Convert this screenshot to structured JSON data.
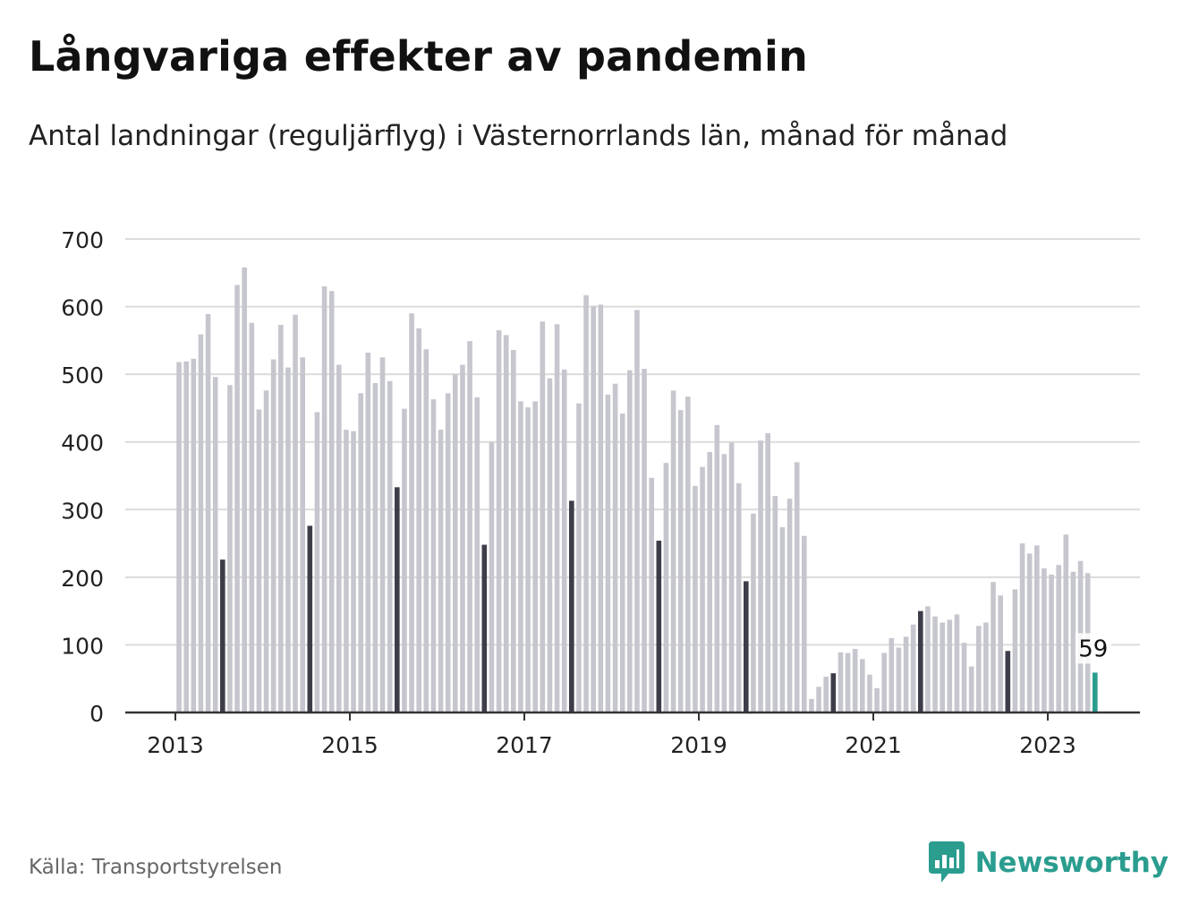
{
  "header": {
    "title": "Långvariga effekter av pandemin",
    "subtitle": "Antal landningar (reguljärflyg) i Västernorrlands län, månad för månad"
  },
  "footer": {
    "source": "Källa: Transportstyrelsen",
    "brand": "Newsworthy",
    "brand_icon": "newsworthy-logo-icon"
  },
  "colors": {
    "bar_default": "#c6c6ce",
    "bar_highlight": "#3d3d4a",
    "bar_latest": "#2a9d8f",
    "grid": "#dcdcdc",
    "axis": "#333333",
    "brand": "#2a9d8f"
  },
  "chart_data": {
    "type": "bar",
    "title": "Långvariga effekter av pandemin",
    "subtitle": "Antal landningar (reguljärflyg) i Västernorrlands län, månad för månad",
    "xlabel": "",
    "ylabel": "",
    "ylim": [
      0,
      700
    ],
    "yticks": [
      0,
      100,
      200,
      300,
      400,
      500,
      600,
      700
    ],
    "xticks": [
      "2013",
      "2015",
      "2017",
      "2019",
      "2021",
      "2023"
    ],
    "grid": true,
    "start": "2013-01",
    "months": [
      "2013-01",
      "2013-02",
      "2013-03",
      "2013-04",
      "2013-05",
      "2013-06",
      "2013-07",
      "2013-08",
      "2013-09",
      "2013-10",
      "2013-11",
      "2013-12",
      "2014-01",
      "2014-02",
      "2014-03",
      "2014-04",
      "2014-05",
      "2014-06",
      "2014-07",
      "2014-08",
      "2014-09",
      "2014-10",
      "2014-11",
      "2014-12",
      "2015-01",
      "2015-02",
      "2015-03",
      "2015-04",
      "2015-05",
      "2015-06",
      "2015-07",
      "2015-08",
      "2015-09",
      "2015-10",
      "2015-11",
      "2015-12",
      "2016-01",
      "2016-02",
      "2016-03",
      "2016-04",
      "2016-05",
      "2016-06",
      "2016-07",
      "2016-08",
      "2016-09",
      "2016-10",
      "2016-11",
      "2016-12",
      "2017-01",
      "2017-02",
      "2017-03",
      "2017-04",
      "2017-05",
      "2017-06",
      "2017-07",
      "2017-08",
      "2017-09",
      "2017-10",
      "2017-11",
      "2017-12",
      "2018-01",
      "2018-02",
      "2018-03",
      "2018-04",
      "2018-05",
      "2018-06",
      "2018-07",
      "2018-08",
      "2018-09",
      "2018-10",
      "2018-11",
      "2018-12",
      "2019-01",
      "2019-02",
      "2019-03",
      "2019-04",
      "2019-05",
      "2019-06",
      "2019-07",
      "2019-08",
      "2019-09",
      "2019-10",
      "2019-11",
      "2019-12",
      "2020-01",
      "2020-02",
      "2020-03",
      "2020-04",
      "2020-05",
      "2020-06",
      "2020-07",
      "2020-08",
      "2020-09",
      "2020-10",
      "2020-11",
      "2020-12",
      "2021-01",
      "2021-02",
      "2021-03",
      "2021-04",
      "2021-05",
      "2021-06",
      "2021-07",
      "2021-08",
      "2021-09",
      "2021-10",
      "2021-11",
      "2021-12",
      "2022-01",
      "2022-02",
      "2022-03",
      "2022-04",
      "2022-05",
      "2022-06",
      "2022-07",
      "2022-08",
      "2022-09",
      "2022-10",
      "2022-11",
      "2022-12",
      "2023-01",
      "2023-02",
      "2023-03",
      "2023-04",
      "2023-05",
      "2023-06",
      "2023-07"
    ],
    "values": [
      518,
      519,
      523,
      559,
      589,
      496,
      226,
      484,
      632,
      658,
      576,
      448,
      476,
      522,
      573,
      510,
      588,
      525,
      276,
      444,
      630,
      623,
      514,
      418,
      416,
      472,
      532,
      487,
      525,
      490,
      333,
      449,
      590,
      568,
      537,
      463,
      418,
      472,
      500,
      514,
      549,
      466,
      248,
      400,
      565,
      558,
      536,
      460,
      451,
      460,
      578,
      494,
      574,
      507,
      313,
      457,
      617,
      601,
      603,
      470,
      486,
      442,
      506,
      595,
      508,
      347,
      254,
      369,
      476,
      447,
      467,
      335,
      363,
      385,
      425,
      382,
      399,
      339,
      194,
      294,
      402,
      413,
      320,
      274,
      316,
      370,
      261,
      20,
      38,
      53,
      58,
      89,
      88,
      94,
      79,
      56,
      36,
      88,
      110,
      96,
      112,
      130,
      150,
      157,
      142,
      133,
      137,
      145,
      103,
      68,
      128,
      133,
      193,
      173,
      91,
      182,
      250,
      235,
      247,
      213,
      204,
      218,
      263,
      208,
      224,
      206,
      59
    ],
    "highlighted_months": [
      "2013-07",
      "2014-07",
      "2015-07",
      "2016-07",
      "2017-07",
      "2018-07",
      "2019-07",
      "2020-07",
      "2021-07",
      "2022-07"
    ],
    "latest": {
      "month": "2023-07",
      "value": 59,
      "label": "59"
    }
  }
}
